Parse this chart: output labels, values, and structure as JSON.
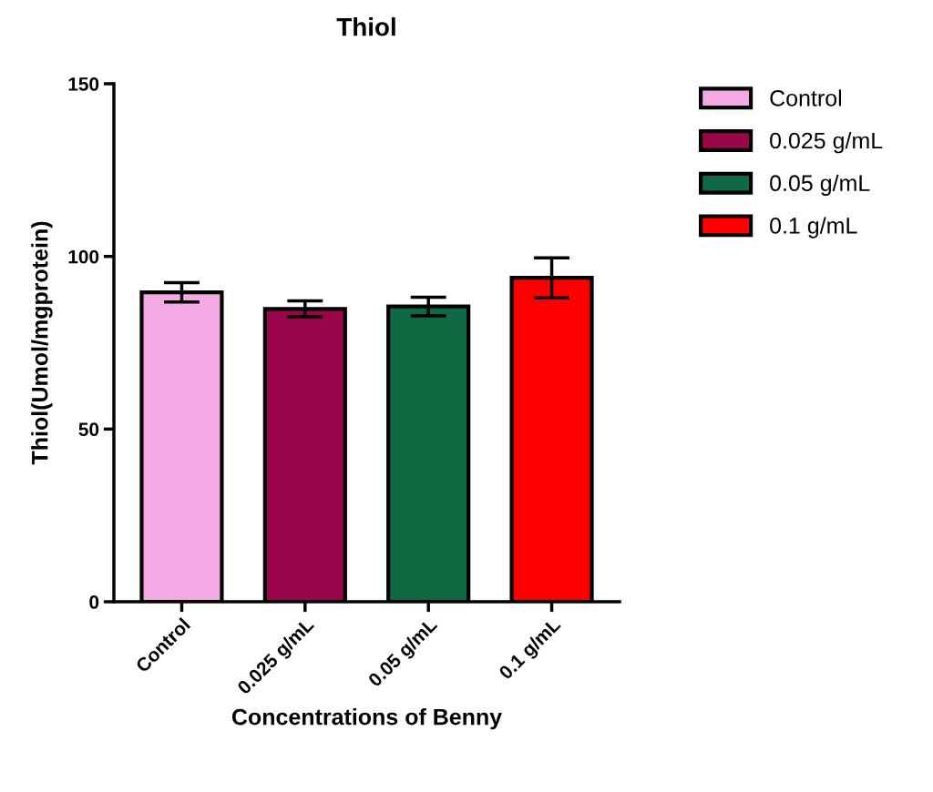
{
  "chart_data": {
    "type": "bar",
    "title": "Thiol",
    "xlabel": "Concentrations of Benny",
    "ylabel": "Thiol(Umol/mgprotein)",
    "categories": [
      "Control",
      "0.025 g/mL",
      "0.05 g/mL",
      "0.1 g/mL"
    ],
    "series": [
      {
        "name": "Control",
        "color": "#f4a9e4",
        "values": [
          89.6,
          null,
          null,
          null
        ],
        "errors": [
          2.8,
          null,
          null,
          null
        ]
      },
      {
        "name": "0.025 g/mL",
        "color": "#99064a",
        "values": [
          null,
          84.8,
          null,
          null
        ],
        "errors": [
          null,
          2.3,
          null,
          null
        ]
      },
      {
        "name": "0.05 g/mL",
        "color": "#0f6a44",
        "values": [
          null,
          null,
          85.5,
          null
        ],
        "errors": [
          null,
          null,
          2.7,
          null
        ]
      },
      {
        "name": "0.1 g/mL",
        "color": "#ff0000",
        "values": [
          null,
          null,
          null,
          93.8
        ],
        "errors": [
          null,
          null,
          null,
          5.8
        ]
      }
    ],
    "ylim": [
      0,
      150
    ],
    "yticks": [
      0,
      50,
      100,
      150
    ],
    "grid": false,
    "legend": "top right"
  }
}
